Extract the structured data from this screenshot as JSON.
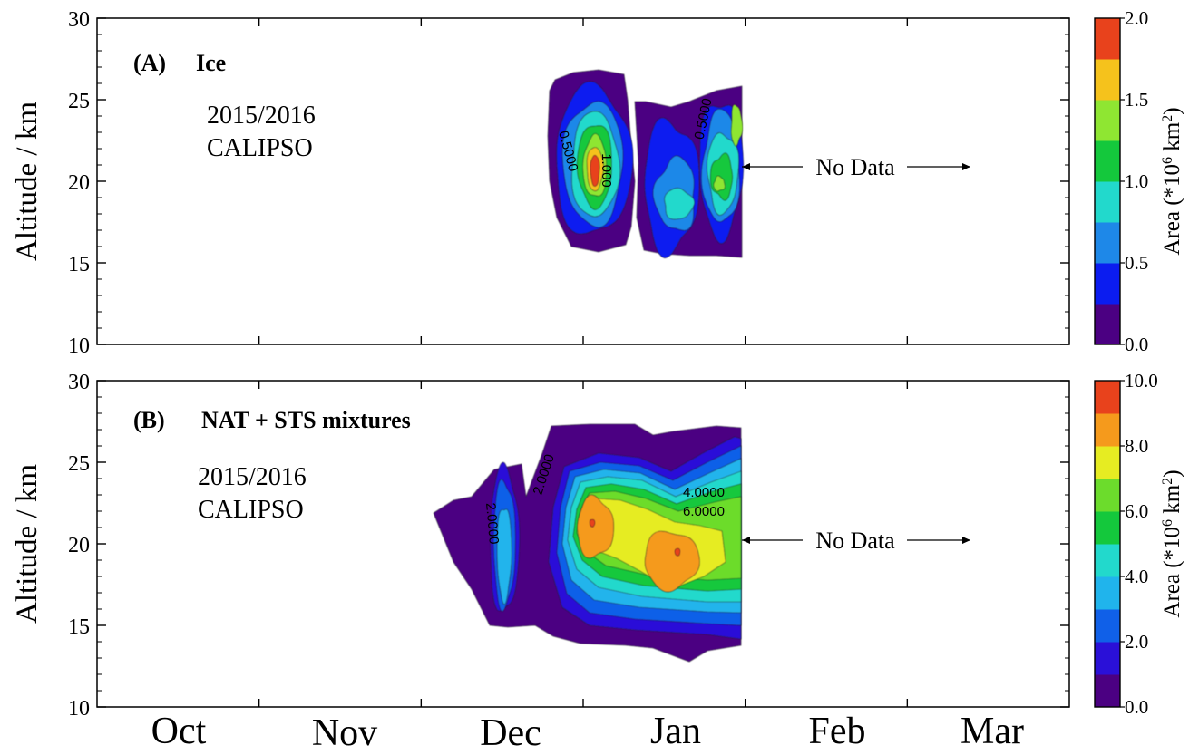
{
  "chart_data": [
    {
      "type": "heatmap",
      "panel_label": "(A)",
      "title": "Ice",
      "annotation_lines": [
        "2015/2016",
        "CALIPSO"
      ],
      "ylabel": "Altitude / km",
      "ylim": [
        10,
        30
      ],
      "yticks": [
        "10",
        "15",
        "20",
        "25",
        "30"
      ],
      "x_categories": [
        "Oct",
        "Nov",
        "Dec",
        "Jan",
        "Feb",
        "Mar"
      ],
      "colorbar": {
        "label_prefix": "Area (*10",
        "label_exp": "6",
        "label_mid": " km",
        "label_exp2": "2",
        "label_suffix": ")",
        "ticks": [
          "0.0",
          "0.5",
          "1.0",
          "1.5",
          "2.0"
        ],
        "range": [
          0,
          2
        ],
        "levels": 8,
        "colors": [
          "#4b0082",
          "#0b1cf0",
          "#1e88e8",
          "#22d9cc",
          "#14c83c",
          "#8fe632",
          "#f5c21c",
          "#e8421c"
        ]
      },
      "no_data_text": "No Data",
      "contour_labels": [
        "0.5000",
        "1.000",
        "0.5000"
      ],
      "peak_value": 2.0
    },
    {
      "type": "heatmap",
      "panel_label": "(B)",
      "title": "NAT + STS mixtures",
      "annotation_lines": [
        "2015/2016",
        "CALIPSO"
      ],
      "ylabel": "Altitude / km",
      "ylim": [
        10,
        30
      ],
      "yticks": [
        "10",
        "15",
        "20",
        "25",
        "30"
      ],
      "x_categories": [
        "Oct",
        "Nov",
        "Dec",
        "Jan",
        "Feb",
        "Mar"
      ],
      "colorbar": {
        "label_prefix": "Area (*10",
        "label_exp": "6",
        "label_mid": " km",
        "label_exp2": "2",
        "label_suffix": ")",
        "ticks": [
          "0.0",
          "2.0",
          "4.0",
          "6.0",
          "8.0",
          "10.0"
        ],
        "range": [
          0,
          10
        ],
        "levels": 10,
        "colors": [
          "#4b0082",
          "#2a10d8",
          "#1060e8",
          "#20b4ec",
          "#22d9cc",
          "#14c83c",
          "#6cdc2c",
          "#e6ec22",
          "#f59a1c",
          "#e8421c"
        ]
      },
      "no_data_text": "No Data",
      "contour_labels": [
        "2.0000",
        "2.0000",
        "4.0000",
        "6.0000"
      ],
      "peak_value": 9.0
    }
  ]
}
